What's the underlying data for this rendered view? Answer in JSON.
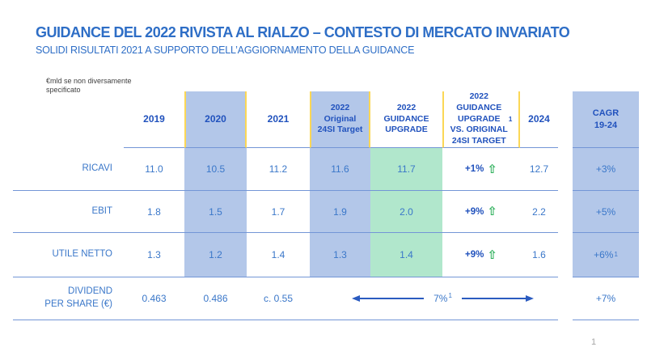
{
  "slide": {
    "title": "GUIDANCE DEL 2022 RIVISTA AL RIALZO – CONTESTO DI MERCATO INVARIATO",
    "subtitle": "SOLIDI RISULTATI 2021 A SUPPORTO DELL’AGGIORNAMENTO DELLA GUIDANCE",
    "units_note": "€mld se non diversamente\nspecificato",
    "page_number": "1"
  },
  "icons": {
    "upgrade_arrow": "⇧"
  },
  "colors": {
    "highlight_blue": "#b3c7e9",
    "highlight_green": "#b1e7cc",
    "accent_yellow": "#fbd756",
    "positive_green": "#2fb05c",
    "title_blue": "#2e6ec6",
    "header_blue": "#2152bd",
    "data_blue": "#3a77c9"
  },
  "table": {
    "headers": {
      "y2019": "2019",
      "y2020": "2020",
      "y2021": "2021",
      "orig": "2022\nOriginal\n24SI Target",
      "upgrade": "2022\nGUIDANCE\nUPGRADE",
      "vs": "2022\nGUIDANCE\nUPGRADE\nVS. ORIGINAL\n24SI TARGET ",
      "vs_sup": "1",
      "y2024": "2024",
      "cagr": "CAGR\n19-24"
    },
    "rows": [
      {
        "label": "RICAVI",
        "y2019": "11.0",
        "y2020": "10.5",
        "y2021": "11.2",
        "orig": "11.6",
        "upgrade": "11.7",
        "vs": "+1%",
        "y2024": "12.7",
        "cagr": "+3%"
      },
      {
        "label": "EBIT",
        "y2019": "1.8",
        "y2020": "1.5",
        "y2021": "1.7",
        "orig": "1.9",
        "upgrade": "2.0",
        "vs": "+9%",
        "y2024": "2.2",
        "cagr": "+5%"
      },
      {
        "label": "UTILE NETTO",
        "y2019": "1.3",
        "y2020": "1.2",
        "y2021": "1.4",
        "orig": "1.3",
        "upgrade": "1.4",
        "vs": "+9%",
        "y2024": "1.6",
        "cagr": "+6%",
        "cagr_sup": "1"
      }
    ],
    "dividend_row": {
      "label": "DIVIDEND\nPER SHARE (€)",
      "y2019": "0.463",
      "y2020": "0.486",
      "y2021": "c. 0.55",
      "arrow_label": "7%",
      "arrow_sup": "1",
      "cagr": "+7%"
    }
  }
}
